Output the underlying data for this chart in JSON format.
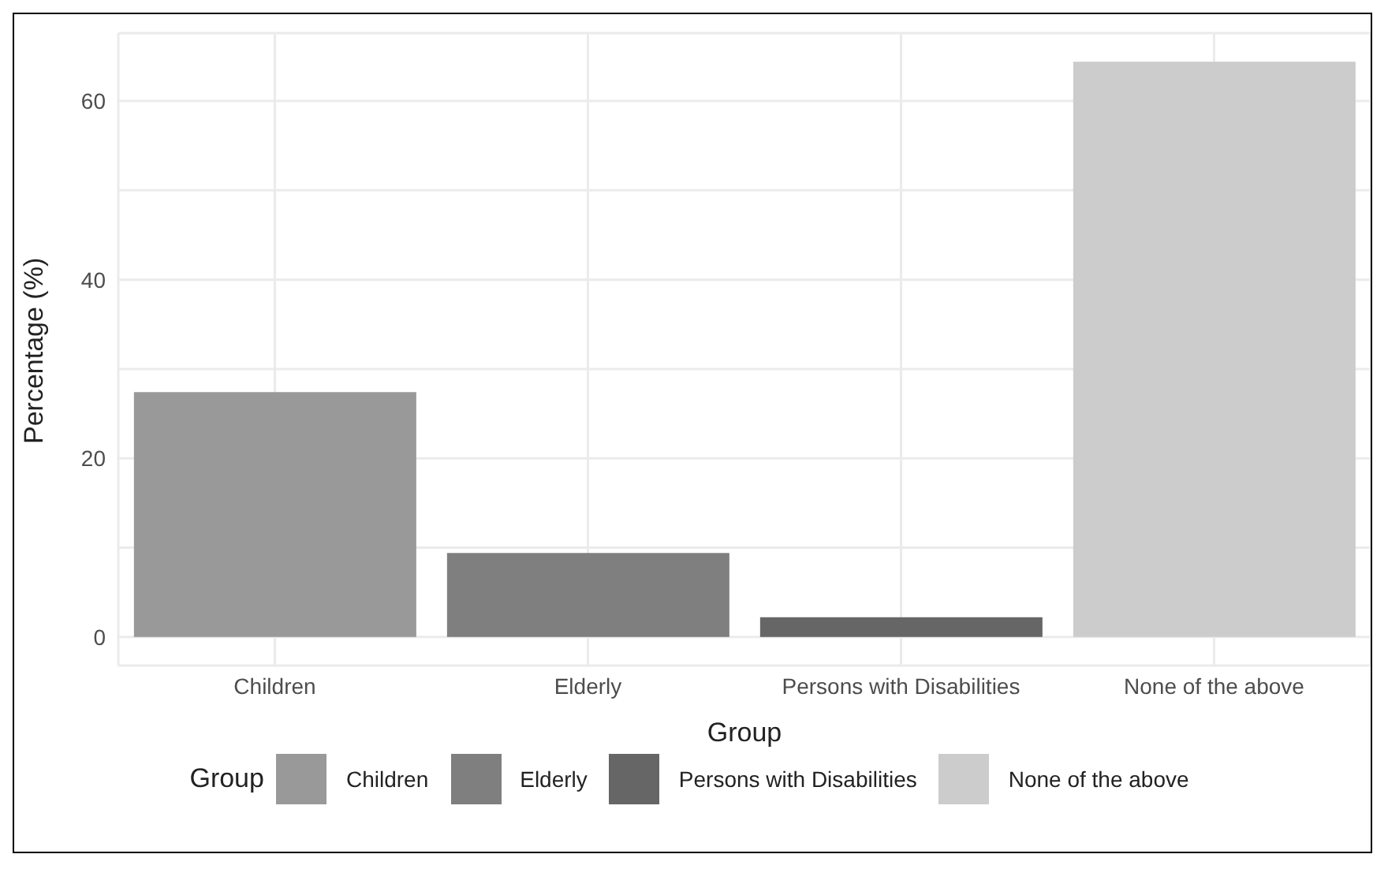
{
  "chart_data": {
    "type": "bar",
    "xlabel": "Group",
    "ylabel": "Percentage (%)",
    "legend_title": "Group",
    "categories": [
      "Children",
      "Elderly",
      "Persons with Disabilities",
      "None of the above"
    ],
    "stacked": true,
    "series": [
      {
        "name": "Children",
        "color": "#999999",
        "values": [
          27.4,
          null,
          null,
          null
        ]
      },
      {
        "name": "Elderly",
        "color": "#7f7f7f",
        "values": [
          null,
          9.4,
          null,
          null
        ]
      },
      {
        "name": "Persons with Disabilities",
        "color": "#666666",
        "values": [
          null,
          null,
          2.2,
          null
        ]
      },
      {
        "name": "None of the above",
        "color": "#cccccc",
        "values": [
          null,
          null,
          null,
          64.4
        ]
      }
    ],
    "ylim": [
      -3.2,
      67.6
    ],
    "yticks": [
      0,
      {
        "value": 10,
        "label": null
      },
      20,
      {
        "value": 30,
        "label": null
      },
      40,
      {
        "value": 50,
        "label": null
      },
      60
    ],
    "grid": true,
    "legend": "bottom"
  }
}
